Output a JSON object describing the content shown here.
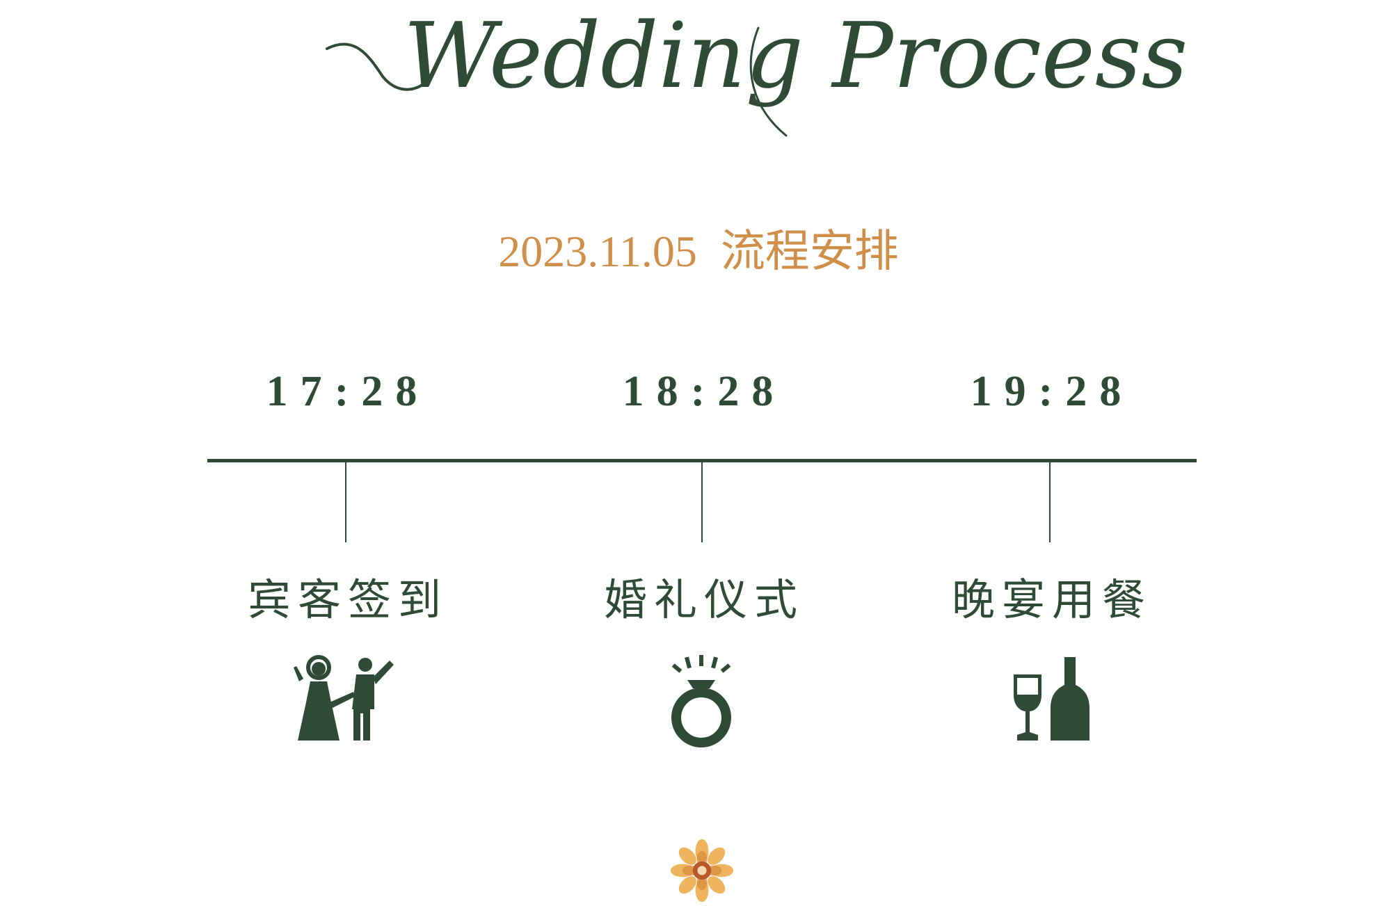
{
  "header": {
    "script_title": "Wedding Process",
    "date": "2023.11.05",
    "date_caption": "流程安排"
  },
  "schedule": [
    {
      "time": "17:28",
      "event": "宾客签到",
      "icon": "bride-groom-icon"
    },
    {
      "time": "18:28",
      "event": "婚礼仪式",
      "icon": "diamond-ring-icon"
    },
    {
      "time": "19:28",
      "event": "晚宴用餐",
      "icon": "wine-bottle-icon"
    }
  ],
  "decoration": {
    "icon": "flower-icon"
  },
  "colors": {
    "primary": "#2f4a36",
    "accent": "#d08f48",
    "background": "#ffffff"
  }
}
